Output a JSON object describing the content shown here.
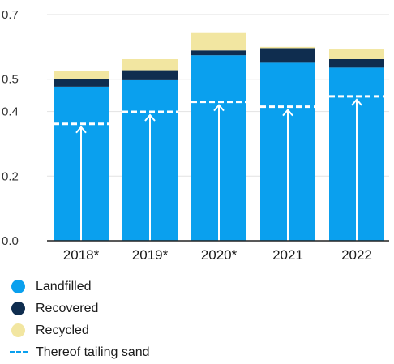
{
  "chart_data": {
    "type": "bar",
    "stacked": true,
    "title": "",
    "xlabel": "",
    "ylabel": "",
    "ylim": [
      0.0,
      0.7
    ],
    "y_ticks": [
      0.0,
      0.2,
      0.4,
      0.5,
      0.7
    ],
    "y_tick_labels": [
      "0.0",
      "0.2",
      "0.4",
      "0.5",
      "0.7"
    ],
    "grid": true,
    "legend_position": "bottom-left",
    "categories": [
      "2018*",
      "2019*",
      "2020*",
      "2021",
      "2022"
    ],
    "series": [
      {
        "name": "Landfilled",
        "color": "#0aa0ee",
        "values": [
          0.477,
          0.497,
          0.574,
          0.551,
          0.536
        ]
      },
      {
        "name": "Recovered",
        "color": "#0f2d4f",
        "values": [
          0.024,
          0.031,
          0.015,
          0.045,
          0.026
        ]
      },
      {
        "name": "Recycled",
        "color": "#f2e6a1",
        "values": [
          0.024,
          0.034,
          0.054,
          0.004,
          0.03
        ]
      }
    ],
    "reference_line": {
      "name": "Thereof tailing sand",
      "color": "#ffffff",
      "values": [
        0.362,
        0.399,
        0.43,
        0.415,
        0.447
      ]
    }
  }
}
